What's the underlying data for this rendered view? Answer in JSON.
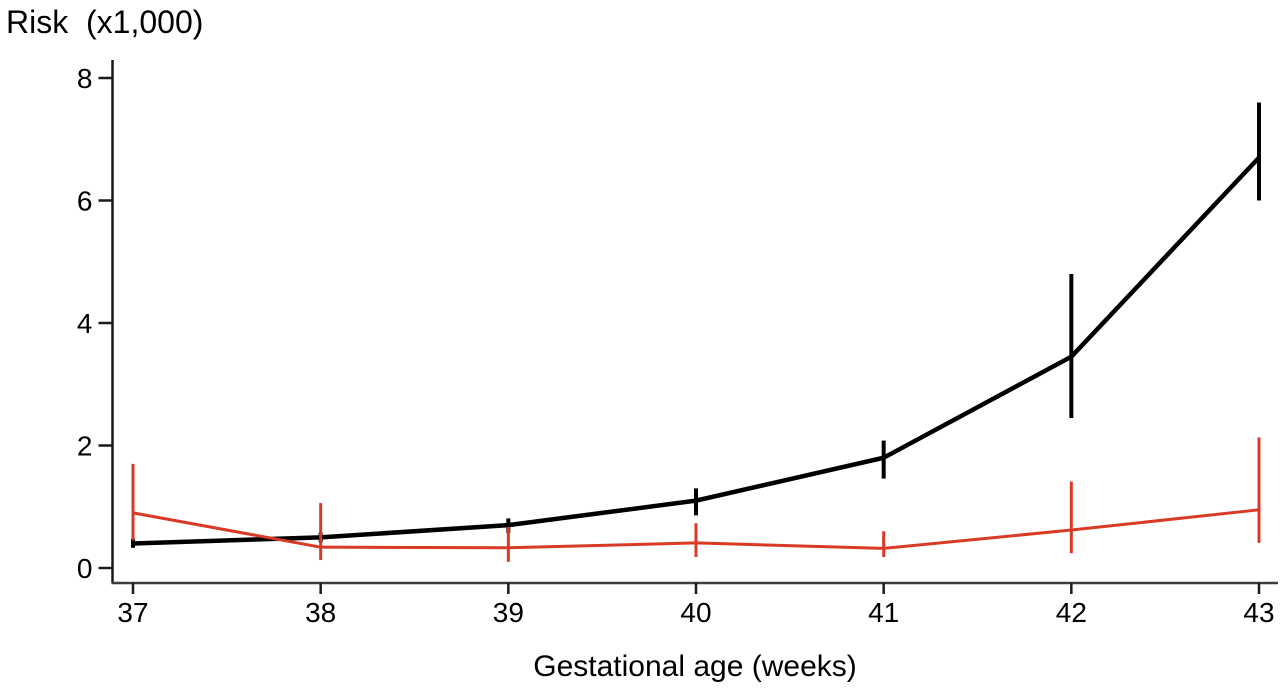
{
  "page": {
    "background": "#ffffff"
  },
  "chart_data": {
    "type": "line",
    "title": "Risk  (x1,000)",
    "xlabel": "Gestational age (weeks)",
    "ylabel": "",
    "x": [
      37,
      38,
      39,
      40,
      41,
      42,
      43
    ],
    "x_tick_labels": [
      "37",
      "38",
      "39",
      "40",
      "41",
      "42",
      "43"
    ],
    "y_ticks": [
      0,
      2,
      4,
      6,
      8
    ],
    "xlim": [
      37,
      43
    ],
    "ylim": [
      0,
      8
    ],
    "grid": false,
    "legend_position": "none",
    "error_bars": true,
    "series": [
      {
        "name": "black-series",
        "color": "#000000",
        "line_width": 4.5,
        "error_bar_width": 4,
        "values": [
          0.4,
          0.5,
          0.7,
          1.1,
          1.8,
          3.45,
          6.7
        ],
        "ci_low": [
          0.33,
          0.42,
          0.57,
          0.86,
          1.46,
          2.45,
          6.0
        ],
        "ci_high": [
          0.48,
          0.58,
          0.81,
          1.3,
          2.08,
          4.8,
          7.6
        ]
      },
      {
        "name": "red-series",
        "color": "#d93a26",
        "line_width": 3,
        "error_bar_width": 3,
        "values": [
          0.9,
          0.34,
          0.33,
          0.41,
          0.32,
          0.62,
          0.95
        ],
        "ci_low": [
          0.45,
          0.13,
          0.1,
          0.18,
          0.18,
          0.24,
          0.41
        ],
        "ci_high": [
          1.7,
          1.06,
          0.67,
          0.73,
          0.6,
          1.41,
          2.13
        ]
      }
    ],
    "axis_color": "#3d3d3d",
    "tick_color": "#1a1a1a",
    "text_color": "#000000"
  }
}
